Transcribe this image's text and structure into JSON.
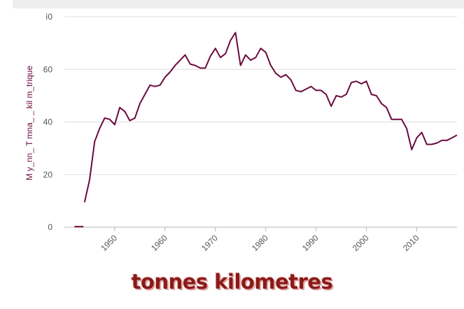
{
  "caption": "tonnes kilometres",
  "chart_data": {
    "type": "line",
    "title": "",
    "xlabel": "",
    "ylabel": "M y_nn_ T mna_ _ kil m_trique",
    "ylim": [
      0,
      80
    ],
    "xlim": [
      1940,
      2018
    ],
    "y_ticks": [
      0,
      20,
      40,
      60,
      80
    ],
    "y_tick_labels": [
      "0",
      "20",
      "40",
      "60",
      "ⅰ0"
    ],
    "x_ticks": [
      1950,
      1960,
      1970,
      1980,
      1990,
      2000,
      2010
    ],
    "x_tick_labels": [
      "1950",
      "1960",
      "1970",
      "1980",
      "1990",
      "2000",
      "2010"
    ],
    "grid": true,
    "series": [
      {
        "color": "#6b0a3e",
        "x": [
          1944,
          1945,
          1946,
          1947,
          1948,
          1949,
          1950,
          1951,
          1952,
          1953,
          1954,
          1955,
          1956,
          1957,
          1958,
          1959,
          1960,
          1961,
          1962,
          1963,
          1964,
          1965,
          1966,
          1967,
          1968,
          1969,
          1970,
          1971,
          1972,
          1973,
          1974,
          1975,
          1976,
          1977,
          1978,
          1979,
          1980,
          1981,
          1982,
          1983,
          1984,
          1985,
          1986,
          1987,
          1988,
          1989,
          1990,
          1991,
          1992,
          1993,
          1994,
          1995,
          1996,
          1997,
          1998,
          1999,
          2000,
          2001,
          2002,
          2003,
          2004,
          2005,
          2006,
          2007,
          2008,
          2009,
          2010,
          2011,
          2012,
          2013,
          2014,
          2015,
          2016,
          2017,
          2018
        ],
        "y": [
          9.5,
          18,
          32.5,
          37.5,
          41.5,
          41,
          39,
          45.5,
          44,
          40.5,
          41.5,
          47,
          50.5,
          54,
          53.5,
          54,
          57,
          59,
          61.5,
          63.5,
          65.5,
          62,
          61.5,
          60.5,
          60.5,
          65,
          68,
          64.5,
          66,
          71,
          74,
          61.5,
          65.5,
          63.5,
          64.5,
          68,
          66.5,
          61.5,
          58.5,
          57,
          58,
          56,
          52,
          51.5,
          52.5,
          53.5,
          52,
          52,
          50.5,
          46,
          50,
          49.5,
          50.5,
          55,
          55.5,
          54.5,
          55.5,
          50.5,
          50,
          47,
          45.5,
          41,
          41,
          41,
          37.5,
          29.5,
          34,
          36,
          31.5,
          31.5,
          32,
          33,
          33,
          34,
          35
        ]
      },
      {
        "color": "#6b0a3e",
        "x": [
          1942,
          1943.8
        ],
        "y": [
          0.2,
          0.2
        ]
      }
    ]
  }
}
